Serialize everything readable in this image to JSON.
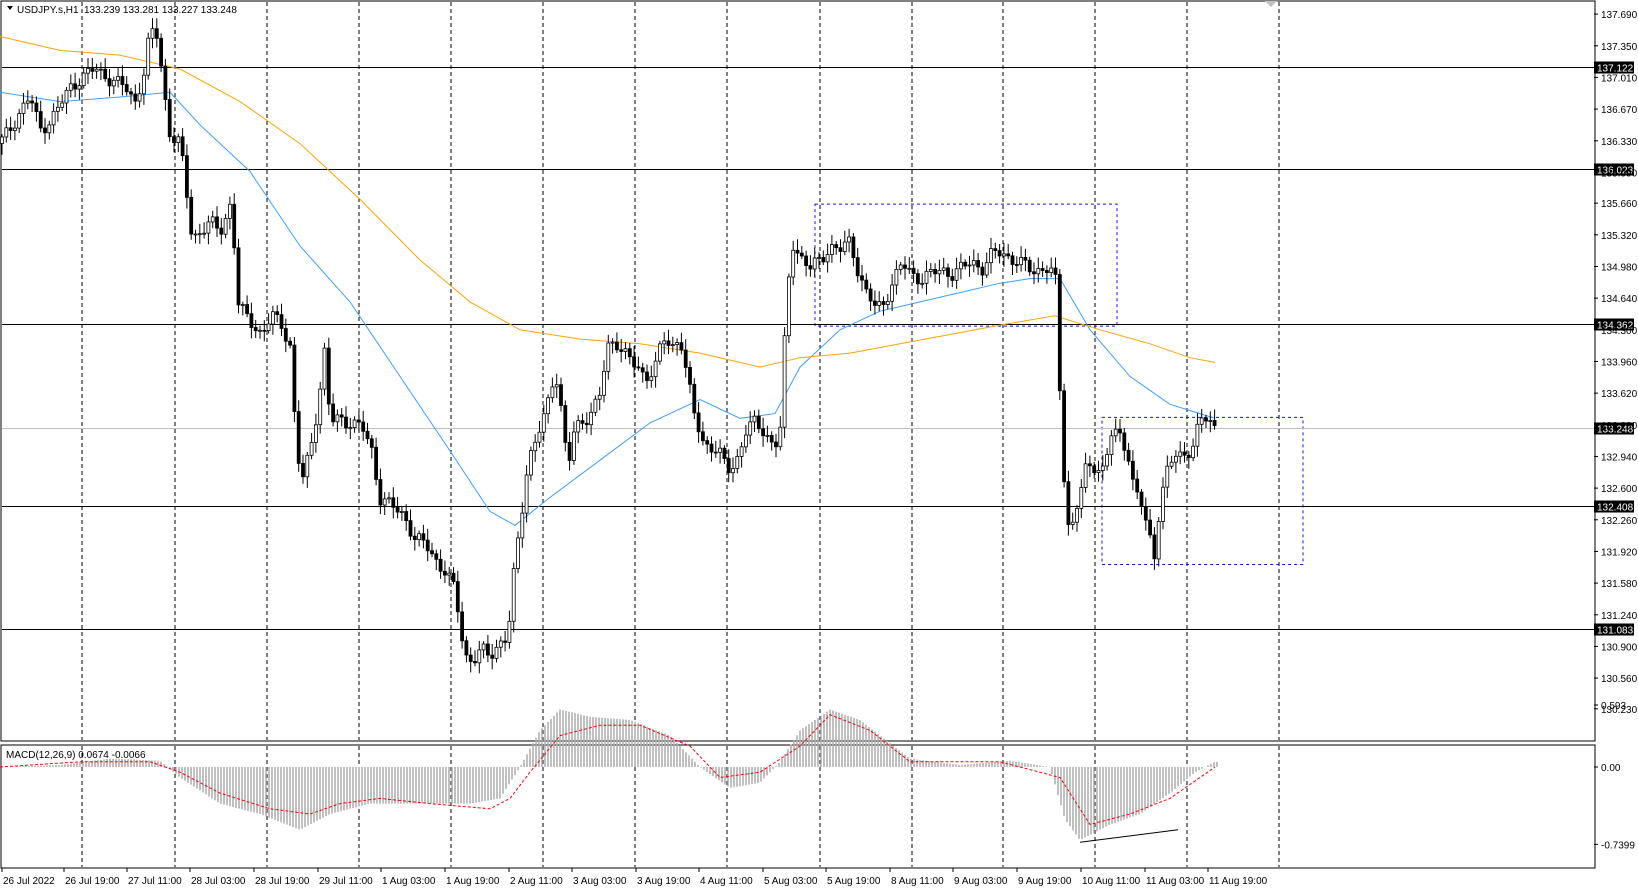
{
  "header": {
    "symbol_timeframe": "USDJPY.s,H1",
    "ohlc": "133.239 133.281 133.227 133.248"
  },
  "macd_header": "MACD(12,26,9) 0.0674 -0.0066",
  "chart_data": {
    "type": "candlestick",
    "price_axis_ticks": [
      "137.690",
      "137.350",
      "137.010",
      "136.670",
      "136.330",
      "135.990",
      "135.660",
      "135.320",
      "134.980",
      "134.640",
      "134.300",
      "133.960",
      "133.620",
      "133.280",
      "132.940",
      "132.600",
      "132.260",
      "131.920",
      "131.580",
      "131.240",
      "130.900",
      "130.560",
      "130.230"
    ],
    "macd_axis_ticks": [
      "0.593",
      "0.00",
      "-0.7399"
    ],
    "time_labels": [
      "26 Jul 2022",
      "26 Jul 19:00",
      "27 Jul 11:00",
      "28 Jul 03:00",
      "28 Jul 19:00",
      "29 Jul 11:00",
      "1 Aug 03:00",
      "1 Aug 19:00",
      "2 Aug 11:00",
      "3 Aug 03:00",
      "3 Aug 19:00",
      "4 Aug 11:00",
      "5 Aug 03:00",
      "5 Aug 19:00",
      "8 Aug 11:00",
      "9 Aug 03:00",
      "9 Aug 19:00",
      "10 Aug 11:00",
      "11 Aug 03:00",
      "11 Aug 19:00"
    ],
    "horizontal_levels": [
      {
        "value": 137.122,
        "label": "137.122"
      },
      {
        "value": 136.023,
        "label": "136.023"
      },
      {
        "value": 134.362,
        "label": "134.362"
      },
      {
        "value": 132.408,
        "label": "132.408"
      },
      {
        "value": 131.083,
        "label": "131.083"
      }
    ],
    "current_price": {
      "value": 133.248,
      "label": "133.248"
    },
    "anchors": [
      [
        0,
        136.3
      ],
      [
        10,
        136.45
      ],
      [
        20,
        136.65
      ],
      [
        30,
        136.8
      ],
      [
        40,
        136.45
      ],
      [
        50,
        136.55
      ],
      [
        60,
        136.7
      ],
      [
        70,
        136.9
      ],
      [
        80,
        137.0
      ],
      [
        95,
        137.1
      ],
      [
        110,
        137.0
      ],
      [
        125,
        136.9
      ],
      [
        135,
        136.75
      ],
      [
        145,
        137.1
      ],
      [
        150,
        137.5
      ],
      [
        158,
        137.45
      ],
      [
        163,
        136.95
      ],
      [
        170,
        136.4
      ],
      [
        180,
        136.3
      ],
      [
        185,
        135.9
      ],
      [
        192,
        135.3
      ],
      [
        200,
        135.35
      ],
      [
        210,
        135.45
      ],
      [
        220,
        135.35
      ],
      [
        232,
        135.7
      ],
      [
        237,
        134.6
      ],
      [
        245,
        134.45
      ],
      [
        255,
        134.35
      ],
      [
        262,
        134.25
      ],
      [
        272,
        134.45
      ],
      [
        282,
        134.35
      ],
      [
        290,
        134.15
      ],
      [
        297,
        132.95
      ],
      [
        303,
        132.7
      ],
      [
        310,
        133.0
      ],
      [
        318,
        133.5
      ],
      [
        325,
        134.1
      ],
      [
        330,
        133.3
      ],
      [
        340,
        133.35
      ],
      [
        352,
        133.3
      ],
      [
        362,
        133.25
      ],
      [
        372,
        133.0
      ],
      [
        380,
        132.5
      ],
      [
        392,
        132.4
      ],
      [
        405,
        132.3
      ],
      [
        415,
        132.05
      ],
      [
        425,
        132.0
      ],
      [
        435,
        131.85
      ],
      [
        445,
        131.7
      ],
      [
        455,
        131.5
      ],
      [
        462,
        131.0
      ],
      [
        466,
        130.8
      ],
      [
        473,
        130.75
      ],
      [
        482,
        130.85
      ],
      [
        490,
        130.8
      ],
      [
        500,
        130.95
      ],
      [
        508,
        131.0
      ],
      [
        515,
        131.8
      ],
      [
        520,
        132.2
      ],
      [
        528,
        132.9
      ],
      [
        535,
        133.1
      ],
      [
        543,
        133.3
      ],
      [
        550,
        133.6
      ],
      [
        555,
        133.9
      ],
      [
        562,
        133.4
      ],
      [
        568,
        132.8
      ],
      [
        573,
        133.15
      ],
      [
        580,
        133.3
      ],
      [
        590,
        133.4
      ],
      [
        600,
        133.6
      ],
      [
        608,
        134.1
      ],
      [
        615,
        134.2
      ],
      [
        625,
        134.05
      ],
      [
        635,
        133.9
      ],
      [
        645,
        133.8
      ],
      [
        655,
        133.9
      ],
      [
        663,
        134.2
      ],
      [
        672,
        134.1
      ],
      [
        680,
        134.25
      ],
      [
        687,
        133.8
      ],
      [
        695,
        133.35
      ],
      [
        703,
        133.1
      ],
      [
        712,
        133.05
      ],
      [
        720,
        132.95
      ],
      [
        728,
        132.8
      ],
      [
        735,
        132.85
      ],
      [
        745,
        133.2
      ],
      [
        755,
        133.3
      ],
      [
        765,
        133.2
      ],
      [
        775,
        133.05
      ],
      [
        781,
        133.25
      ],
      [
        786,
        134.5
      ],
      [
        792,
        135.25
      ],
      [
        800,
        135.1
      ],
      [
        810,
        134.95
      ],
      [
        820,
        135.05
      ],
      [
        830,
        135.2
      ],
      [
        840,
        135.15
      ],
      [
        850,
        135.25
      ],
      [
        858,
        134.95
      ],
      [
        866,
        134.7
      ],
      [
        874,
        134.55
      ],
      [
        882,
        134.55
      ],
      [
        892,
        134.8
      ],
      [
        902,
        135.0
      ],
      [
        912,
        134.9
      ],
      [
        922,
        134.85
      ],
      [
        932,
        134.9
      ],
      [
        942,
        134.95
      ],
      [
        952,
        134.9
      ],
      [
        962,
        134.95
      ],
      [
        972,
        135.05
      ],
      [
        982,
        134.95
      ],
      [
        992,
        135.1
      ],
      [
        1002,
        135.15
      ],
      [
        1012,
        135.05
      ],
      [
        1022,
        135.0
      ],
      [
        1032,
        134.95
      ],
      [
        1042,
        134.95
      ],
      [
        1050,
        134.95
      ],
      [
        1056,
        134.8
      ],
      [
        1061,
        133.3
      ],
      [
        1066,
        132.4
      ],
      [
        1070,
        132.1
      ],
      [
        1078,
        132.45
      ],
      [
        1086,
        132.8
      ],
      [
        1095,
        132.85
      ],
      [
        1104,
        132.8
      ],
      [
        1112,
        133.2
      ],
      [
        1120,
        133.15
      ],
      [
        1128,
        133.0
      ],
      [
        1134,
        132.6
      ],
      [
        1142,
        132.4
      ],
      [
        1150,
        132.05
      ],
      [
        1155,
        131.85
      ],
      [
        1160,
        132.5
      ],
      [
        1168,
        132.8
      ],
      [
        1176,
        132.95
      ],
      [
        1184,
        132.95
      ],
      [
        1192,
        133.05
      ],
      [
        1200,
        133.3
      ],
      [
        1208,
        133.35
      ],
      [
        1215,
        133.25
      ]
    ],
    "moving_averages": [
      {
        "color": "#3aa0ff",
        "points": [
          [
            0,
            136.85
          ],
          [
            60,
            136.75
          ],
          [
            120,
            136.8
          ],
          [
            170,
            136.85
          ],
          [
            200,
            136.5
          ],
          [
            250,
            136.0
          ],
          [
            300,
            135.2
          ],
          [
            350,
            134.6
          ],
          [
            400,
            133.8
          ],
          [
            450,
            133.0
          ],
          [
            490,
            132.35
          ],
          [
            515,
            132.2
          ],
          [
            550,
            132.5
          ],
          [
            600,
            132.9
          ],
          [
            650,
            133.3
          ],
          [
            700,
            133.55
          ],
          [
            740,
            133.35
          ],
          [
            775,
            133.4
          ],
          [
            800,
            133.9
          ],
          [
            840,
            134.3
          ],
          [
            880,
            134.5
          ],
          [
            920,
            134.6
          ],
          [
            960,
            134.7
          ],
          [
            1000,
            134.8
          ],
          [
            1030,
            134.85
          ],
          [
            1060,
            134.85
          ],
          [
            1090,
            134.3
          ],
          [
            1130,
            133.8
          ],
          [
            1170,
            133.5
          ],
          [
            1200,
            133.4
          ],
          [
            1215,
            133.35
          ]
        ]
      },
      {
        "color": "#ffa500",
        "points": [
          [
            0,
            137.45
          ],
          [
            60,
            137.3
          ],
          [
            120,
            137.25
          ],
          [
            180,
            137.1
          ],
          [
            240,
            136.75
          ],
          [
            300,
            136.3
          ],
          [
            360,
            135.7
          ],
          [
            420,
            135.05
          ],
          [
            470,
            134.6
          ],
          [
            520,
            134.3
          ],
          [
            580,
            134.2
          ],
          [
            640,
            134.15
          ],
          [
            700,
            134.05
          ],
          [
            760,
            133.9
          ],
          [
            800,
            134.0
          ],
          [
            850,
            134.05
          ],
          [
            900,
            134.15
          ],
          [
            950,
            134.25
          ],
          [
            1000,
            134.35
          ],
          [
            1055,
            134.45
          ],
          [
            1100,
            134.3
          ],
          [
            1150,
            134.15
          ],
          [
            1190,
            134.0
          ],
          [
            1215,
            133.95
          ]
        ]
      }
    ],
    "macd_anchors": [
      [
        0,
        0.0
      ],
      [
        60,
        0.02
      ],
      [
        110,
        0.08
      ],
      [
        160,
        0.06
      ],
      [
        180,
        -0.1
      ],
      [
        220,
        -0.35
      ],
      [
        260,
        -0.45
      ],
      [
        300,
        -0.6
      ],
      [
        330,
        -0.45
      ],
      [
        370,
        -0.35
      ],
      [
        420,
        -0.35
      ],
      [
        470,
        -0.35
      ],
      [
        500,
        -0.3
      ],
      [
        520,
        0.0
      ],
      [
        540,
        0.35
      ],
      [
        560,
        0.55
      ],
      [
        590,
        0.48
      ],
      [
        630,
        0.45
      ],
      [
        670,
        0.3
      ],
      [
        700,
        0.0
      ],
      [
        730,
        -0.2
      ],
      [
        760,
        -0.15
      ],
      [
        780,
        0.05
      ],
      [
        800,
        0.35
      ],
      [
        830,
        0.55
      ],
      [
        860,
        0.45
      ],
      [
        880,
        0.3
      ],
      [
        910,
        0.08
      ],
      [
        960,
        0.02
      ],
      [
        1010,
        0.06
      ],
      [
        1050,
        0.0
      ],
      [
        1065,
        -0.5
      ],
      [
        1080,
        -0.7
      ],
      [
        1110,
        -0.55
      ],
      [
        1140,
        -0.45
      ],
      [
        1170,
        -0.25
      ],
      [
        1195,
        -0.05
      ],
      [
        1215,
        0.05
      ]
    ],
    "macd_signal_anchors": [
      [
        0,
        0.0
      ],
      [
        80,
        0.05
      ],
      [
        150,
        0.05
      ],
      [
        180,
        -0.05
      ],
      [
        220,
        -0.25
      ],
      [
        270,
        -0.4
      ],
      [
        310,
        -0.45
      ],
      [
        340,
        -0.35
      ],
      [
        380,
        -0.3
      ],
      [
        430,
        -0.35
      ],
      [
        490,
        -0.4
      ],
      [
        510,
        -0.3
      ],
      [
        530,
        -0.05
      ],
      [
        560,
        0.3
      ],
      [
        600,
        0.4
      ],
      [
        640,
        0.4
      ],
      [
        690,
        0.2
      ],
      [
        720,
        -0.1
      ],
      [
        760,
        -0.05
      ],
      [
        800,
        0.2
      ],
      [
        830,
        0.5
      ],
      [
        870,
        0.35
      ],
      [
        910,
        0.05
      ],
      [
        1000,
        0.05
      ],
      [
        1060,
        -0.1
      ],
      [
        1090,
        -0.55
      ],
      [
        1130,
        -0.45
      ],
      [
        1170,
        -0.3
      ],
      [
        1200,
        -0.1
      ],
      [
        1215,
        0.0
      ]
    ]
  }
}
